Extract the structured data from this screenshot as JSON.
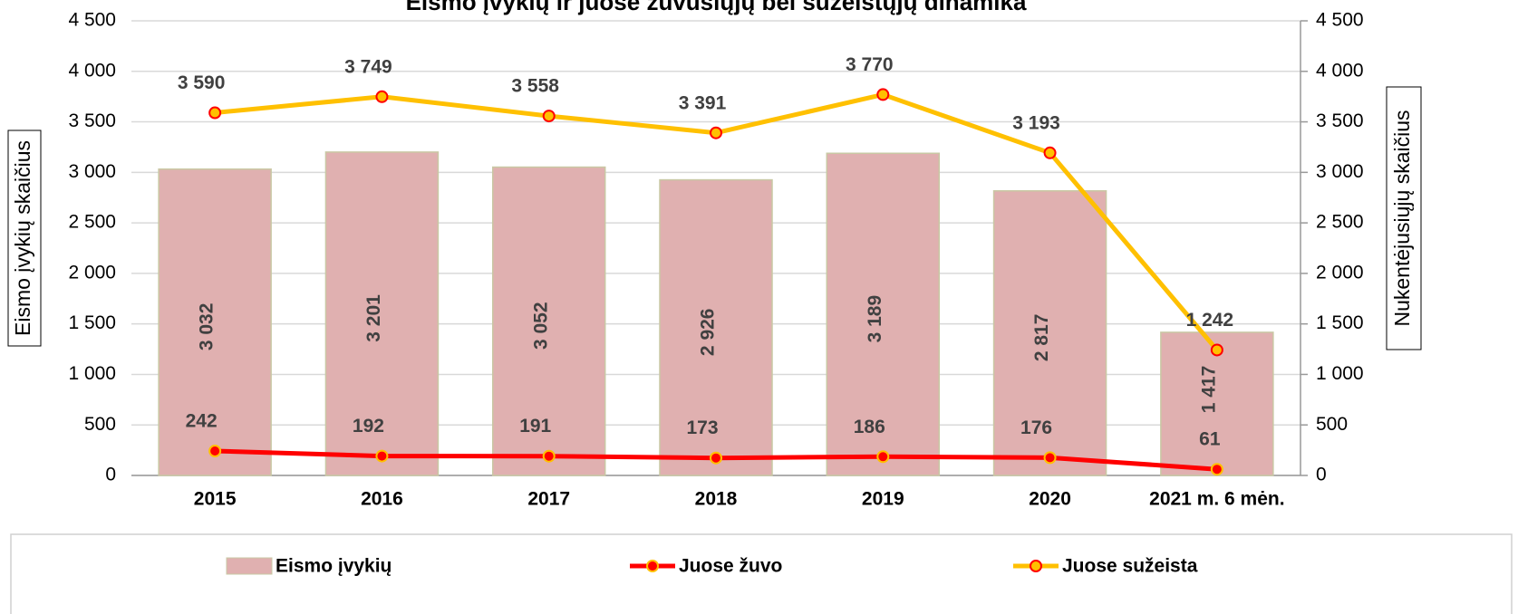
{
  "chart_data": {
    "type": "bar-line",
    "title": "Eismo įvykių ir juose žuvusiųjų bei sužeistųjų dinamika",
    "y_label": "Eismo įvykių skaičius",
    "y2_label": "Nukentėjusiųjų skaičius",
    "categories": [
      "2015",
      "2016",
      "2017",
      "2018",
      "2019",
      "2020",
      "2021 m. 6 mėn."
    ],
    "series": [
      {
        "name": "Eismo įvykių",
        "type": "bar",
        "color": "#e0b0b0",
        "edge_color": "#c9c8a4",
        "axis": "y",
        "values": [
          3032,
          3201,
          3052,
          2926,
          3189,
          2817,
          1417
        ],
        "value_labels": [
          "3 032",
          "3 201",
          "3 052",
          "2 926",
          "3 189",
          "2 817",
          "1 417"
        ]
      },
      {
        "name": "Juose žuvo",
        "type": "line",
        "color": "#ff0000",
        "marker_color": "#ff0000",
        "marker_edge": "#ffc000",
        "axis": "y2",
        "values": [
          242,
          192,
          191,
          173,
          186,
          176,
          61
        ],
        "value_labels": [
          "242",
          "192",
          "191",
          "173",
          "186",
          "176",
          "61"
        ]
      },
      {
        "name": "Juose sužeista",
        "type": "line",
        "color": "#ffc000",
        "marker_color": "#ffc000",
        "marker_edge": "#ff0000",
        "axis": "y2",
        "values": [
          3590,
          3749,
          3558,
          3391,
          3770,
          3193,
          1242
        ],
        "value_labels": [
          "3 590",
          "3 749",
          "3 558",
          "3 391",
          "3 770",
          "3 193",
          "1 242"
        ]
      }
    ],
    "ylim": [
      0,
      4500
    ],
    "yticks": [
      0,
      500,
      {
        "value": 1000,
        "label": "1 000"
      },
      {
        "value": 1500,
        "label": "1 500"
      },
      {
        "value": 2000,
        "label": "2 000"
      },
      {
        "value": 2500,
        "label": "2 500"
      },
      {
        "value": 3000,
        "label": "3 000"
      },
      {
        "value": 3500,
        "label": "3 500"
      },
      {
        "value": 4000,
        "label": "4 000"
      },
      {
        "value": 4500,
        "label": "4 500"
      }
    ],
    "y2lim": [
      0,
      4500
    ],
    "y2ticks": [
      0,
      500,
      {
        "value": 1000,
        "label": "1 000"
      },
      {
        "value": 1500,
        "label": "1 500"
      },
      {
        "value": 2000,
        "label": "2 000"
      },
      {
        "value": 2500,
        "label": "2 500"
      },
      {
        "value": 3000,
        "label": "3 000"
      },
      {
        "value": 3500,
        "label": "3 500"
      },
      {
        "value": 4000,
        "label": "4 000"
      },
      {
        "value": 4500,
        "label": "4 500"
      }
    ],
    "grid": true,
    "legend": "bottom"
  }
}
